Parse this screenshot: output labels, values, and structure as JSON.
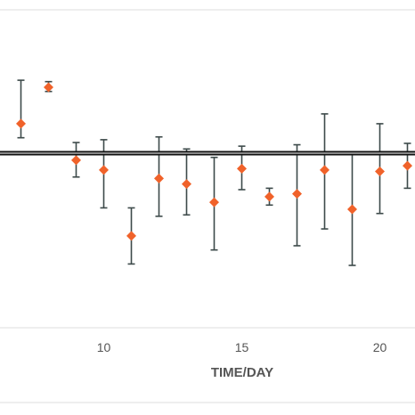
{
  "chart_data": {
    "type": "scatter",
    "title": "",
    "xlabel": "TIME/DAY",
    "ylabel": "",
    "x_ticks": [
      10,
      15,
      20
    ],
    "baseline": 0,
    "grid": false,
    "legend": "none",
    "colors": {
      "point": "#f0622a",
      "errorbar": "#3d4a4a",
      "baseline": "#111111",
      "frame": "#dedede",
      "text": "#555555"
    },
    "points": [
      {
        "x": 7,
        "y": 1.05,
        "lo": 0.55,
        "hi": 2.6
      },
      {
        "x": 8,
        "y": 2.35,
        "lo": 2.2,
        "hi": 2.55
      },
      {
        "x": 9,
        "y": -0.25,
        "lo": -0.85,
        "hi": 0.38
      },
      {
        "x": 10,
        "y": -0.6,
        "lo": -1.95,
        "hi": 0.48
      },
      {
        "x": 11,
        "y": -2.95,
        "lo": -3.95,
        "hi": -1.95
      },
      {
        "x": 12,
        "y": -0.9,
        "lo": -2.25,
        "hi": 0.58
      },
      {
        "x": 13,
        "y": -1.1,
        "lo": -2.2,
        "hi": 0.15
      },
      {
        "x": 14,
        "y": -1.75,
        "lo": -3.45,
        "hi": -0.15
      },
      {
        "x": 15,
        "y": -0.55,
        "lo": -1.3,
        "hi": 0.25
      },
      {
        "x": 16,
        "y": -1.55,
        "lo": -1.85,
        "hi": -1.25
      },
      {
        "x": 17,
        "y": -1.45,
        "lo": -3.3,
        "hi": 0.3
      },
      {
        "x": 18,
        "y": -0.6,
        "lo": -2.7,
        "hi": 1.4
      },
      {
        "x": 19,
        "y": -2.0,
        "lo": -4.0,
        "hi": 0.0
      },
      {
        "x": 20,
        "y": -0.65,
        "lo": -2.15,
        "hi": 1.05
      },
      {
        "x": 21,
        "y": -0.45,
        "lo": -1.25,
        "hi": 0.35
      }
    ]
  }
}
